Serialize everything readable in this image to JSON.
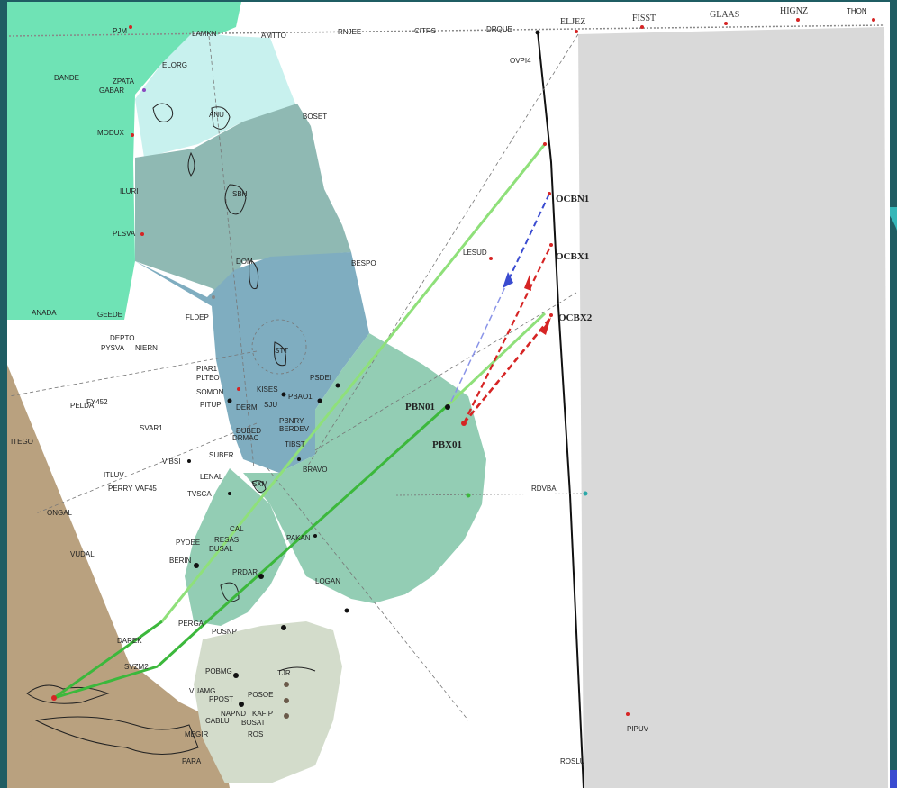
{
  "colors": {
    "slide_bg": "#1f5d63",
    "map_bg": "#ffffff",
    "adjacent_fir": "#d9d9d9",
    "green_fir": "#6fe3b5",
    "brown_land": "#b9a17f",
    "sector_light": "#c8f1ee",
    "sector_mid": "#8fb9b3",
    "sector_blue": "#7fadc0",
    "sector_teal": "#93cdb4",
    "sector_south": "#d3dccb",
    "route_green": "#8fe07a",
    "route_dark": "#3cb83c",
    "red_arrow": "#d62424",
    "blue_arrow": "#3a4bd0"
  },
  "top_labels": {
    "eljez": "ELJEZ",
    "fisst": "FISST",
    "glaas": "GLAAS",
    "hignz": "HIGNZ",
    "thon": "THON"
  },
  "boundary_labels": {
    "ocbn1": "OCBN1",
    "ocbx1": "OCBX1",
    "ocbx2": "OCBX2"
  },
  "procedure_labels": {
    "pbn01": "PBN01",
    "pbx01": "PBX01"
  },
  "waypoints": [
    {
      "id": "PJM",
      "text": "PJM"
    },
    {
      "id": "LAMKN",
      "text": "LAMKN"
    },
    {
      "id": "AMTTO",
      "text": "AMTTO"
    },
    {
      "id": "RNJEE",
      "text": "RNJEE"
    },
    {
      "id": "CITRS",
      "text": "CITRS"
    },
    {
      "id": "DRQUE",
      "text": "DRQUE"
    },
    {
      "id": "OVPI4",
      "text": "OVPI4"
    },
    {
      "id": "ELORG",
      "text": "ELORG"
    },
    {
      "id": "DANDE",
      "text": "DANDE"
    },
    {
      "id": "ZPATA",
      "text": "ZPATA"
    },
    {
      "id": "GABAR",
      "text": "GABAR"
    },
    {
      "id": "MODUX",
      "text": "MODUX"
    },
    {
      "id": "BOSET",
      "text": "BOSET"
    },
    {
      "id": "ILURI",
      "text": "ILURI"
    },
    {
      "id": "PLSVA",
      "text": "PLSVA"
    },
    {
      "id": "BESPO",
      "text": "BESPO"
    },
    {
      "id": "LESUD",
      "text": "LESUD"
    },
    {
      "id": "ANADA",
      "text": "ANADA"
    },
    {
      "id": "GEEDE",
      "text": "GEEDE"
    },
    {
      "id": "FLDEP",
      "text": "FLDEP"
    },
    {
      "id": "DEPTO",
      "text": "DEPTO"
    },
    {
      "id": "PYSVA",
      "text": "PYSVA"
    },
    {
      "id": "NIERN",
      "text": "NIERN"
    },
    {
      "id": "PIAR1",
      "text": "PIAR1"
    },
    {
      "id": "PLTEO",
      "text": "PLTEO"
    },
    {
      "id": "SOMON",
      "text": "SOMON"
    },
    {
      "id": "PITUP",
      "text": "PITUP"
    },
    {
      "id": "DERMI",
      "text": "DERMI"
    },
    {
      "id": "KISES",
      "text": "KISES"
    },
    {
      "id": "SJU",
      "text": "SJU"
    },
    {
      "id": "PBAO1",
      "text": "PBAO1"
    },
    {
      "id": "PSDEI",
      "text": "PSDEI"
    },
    {
      "id": "PELDA",
      "text": "PELDA"
    },
    {
      "id": "FY452",
      "text": "FY452"
    },
    {
      "id": "SVAR1",
      "text": "SVAR1"
    },
    {
      "id": "PBNRY",
      "text": "PBNRY"
    },
    {
      "id": "BERDEV",
      "text": "BERDEV"
    },
    {
      "id": "DUBED",
      "text": "DUBED"
    },
    {
      "id": "DRMAC",
      "text": "DRMAC"
    },
    {
      "id": "TIBST",
      "text": "TIBST"
    },
    {
      "id": "ITEGO",
      "text": "ITEGO"
    },
    {
      "id": "VIBSI",
      "text": "VIBSI"
    },
    {
      "id": "SUBER",
      "text": "SUBER"
    },
    {
      "id": "LENAL",
      "text": "LENAL"
    },
    {
      "id": "ITLUV",
      "text": "ITLUV"
    },
    {
      "id": "PERRY",
      "text": "PERRY"
    },
    {
      "id": "VAF45",
      "text": "VAF45"
    },
    {
      "id": "TVSCA",
      "text": "TVSCA"
    },
    {
      "id": "BRAVO",
      "text": "BRAVO"
    },
    {
      "id": "RDVBA",
      "text": "RDVBA"
    },
    {
      "id": "ONGAL",
      "text": "ONGAL"
    },
    {
      "id": "CAL",
      "text": "CAL"
    },
    {
      "id": "PYDEE",
      "text": "PYDEE"
    },
    {
      "id": "RESAS",
      "text": "RESAS"
    },
    {
      "id": "DUSAL",
      "text": "DUSAL"
    },
    {
      "id": "PAKAN",
      "text": "PAKAN"
    },
    {
      "id": "VUDAL",
      "text": "VUDAL"
    },
    {
      "id": "BERIN",
      "text": "BERIN"
    },
    {
      "id": "PRDAR",
      "text": "PRDAR"
    },
    {
      "id": "LOGAN",
      "text": "LOGAN"
    },
    {
      "id": "PERGA",
      "text": "PERGA"
    },
    {
      "id": "POSNP",
      "text": "POSNP"
    },
    {
      "id": "DAREK",
      "text": "DAREK"
    },
    {
      "id": "SVZM2",
      "text": "SVZM2"
    },
    {
      "id": "POBMG",
      "text": "POBMG"
    },
    {
      "id": "TJR",
      "text": "TJR"
    },
    {
      "id": "VUAMG",
      "text": "VUAMG"
    },
    {
      "id": "PPOST",
      "text": "PPOST"
    },
    {
      "id": "POSOE",
      "text": "POSOE"
    },
    {
      "id": "NAPND",
      "text": "NAPND"
    },
    {
      "id": "KAFIP",
      "text": "KAFIP"
    },
    {
      "id": "CABLU",
      "text": "CABLU"
    },
    {
      "id": "BOSAT",
      "text": "BOSAT"
    },
    {
      "id": "MEGIR",
      "text": "MEGIR"
    },
    {
      "id": "ROS",
      "text": "ROS"
    },
    {
      "id": "PARA",
      "text": "PARA"
    },
    {
      "id": "PIPUV",
      "text": "PIPUV"
    },
    {
      "id": "ROSLU",
      "text": "ROSLU"
    },
    {
      "id": "ANU",
      "text": "ANU"
    },
    {
      "id": "SBH",
      "text": "SBH"
    },
    {
      "id": "DOM",
      "text": "DOM"
    },
    {
      "id": "STT",
      "text": "STT"
    },
    {
      "id": "SXM",
      "text": "SXM"
    }
  ]
}
